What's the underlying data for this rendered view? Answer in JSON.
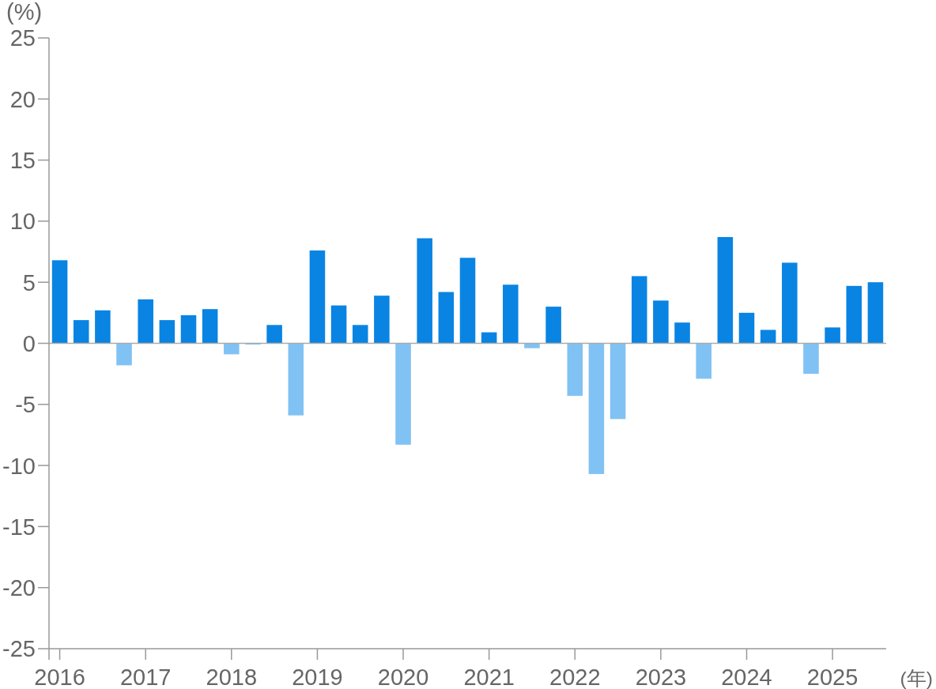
{
  "chart_data": {
    "type": "bar",
    "ylabel": "(%)",
    "xlabel": "(年)",
    "categories": [
      "2016",
      null,
      null,
      null,
      "2017",
      null,
      null,
      null,
      "2018",
      null,
      null,
      null,
      "2019",
      null,
      null,
      null,
      "2020",
      null,
      null,
      null,
      "2021",
      null,
      null,
      null,
      "2022",
      null,
      null,
      null,
      "2023",
      null,
      null,
      null,
      "2024",
      null,
      null,
      null,
      "2025",
      null,
      null
    ],
    "values": [
      6.8,
      1.9,
      2.7,
      -1.8,
      3.6,
      1.9,
      2.3,
      2.8,
      -0.9,
      -0.1,
      1.5,
      -5.9,
      7.6,
      3.1,
      1.5,
      3.9,
      -8.3,
      8.6,
      4.2,
      7.0,
      0.9,
      4.8,
      -0.4,
      3.0,
      -4.3,
      -10.7,
      -6.2,
      5.5,
      3.5,
      1.7,
      -2.9,
      8.7,
      2.5,
      1.1,
      6.6,
      -2.5,
      1.3,
      4.7,
      5.0
    ],
    "colors": [
      "#0984e3",
      "#0984e3",
      "#0984e3",
      "#80c2f3",
      "#0984e3",
      "#0984e3",
      "#0984e3",
      "#0984e3",
      "#80c2f3",
      "#80c2f3",
      "#0984e3",
      "#80c2f3",
      "#0984e3",
      "#0984e3",
      "#0984e3",
      "#0984e3",
      "#80c2f3",
      "#0984e3",
      "#0984e3",
      "#0984e3",
      "#0984e3",
      "#0984e3",
      "#80c2f3",
      "#0984e3",
      "#80c2f3",
      "#80c2f3",
      "#80c2f3",
      "#0984e3",
      "#0984e3",
      "#0984e3",
      "#80c2f3",
      "#0984e3",
      "#0984e3",
      "#0984e3",
      "#0984e3",
      "#80c2f3",
      "#0984e3",
      "#0984e3",
      "#0984e3"
    ],
    "ylim": [
      -25,
      25
    ],
    "yticks": [
      -25,
      -20,
      -15,
      -10,
      -5,
      0,
      5,
      10,
      15,
      20,
      25
    ],
    "ref_lines": [
      {
        "axis": "y",
        "value": 0,
        "color": "#aaaaaa"
      }
    ]
  }
}
